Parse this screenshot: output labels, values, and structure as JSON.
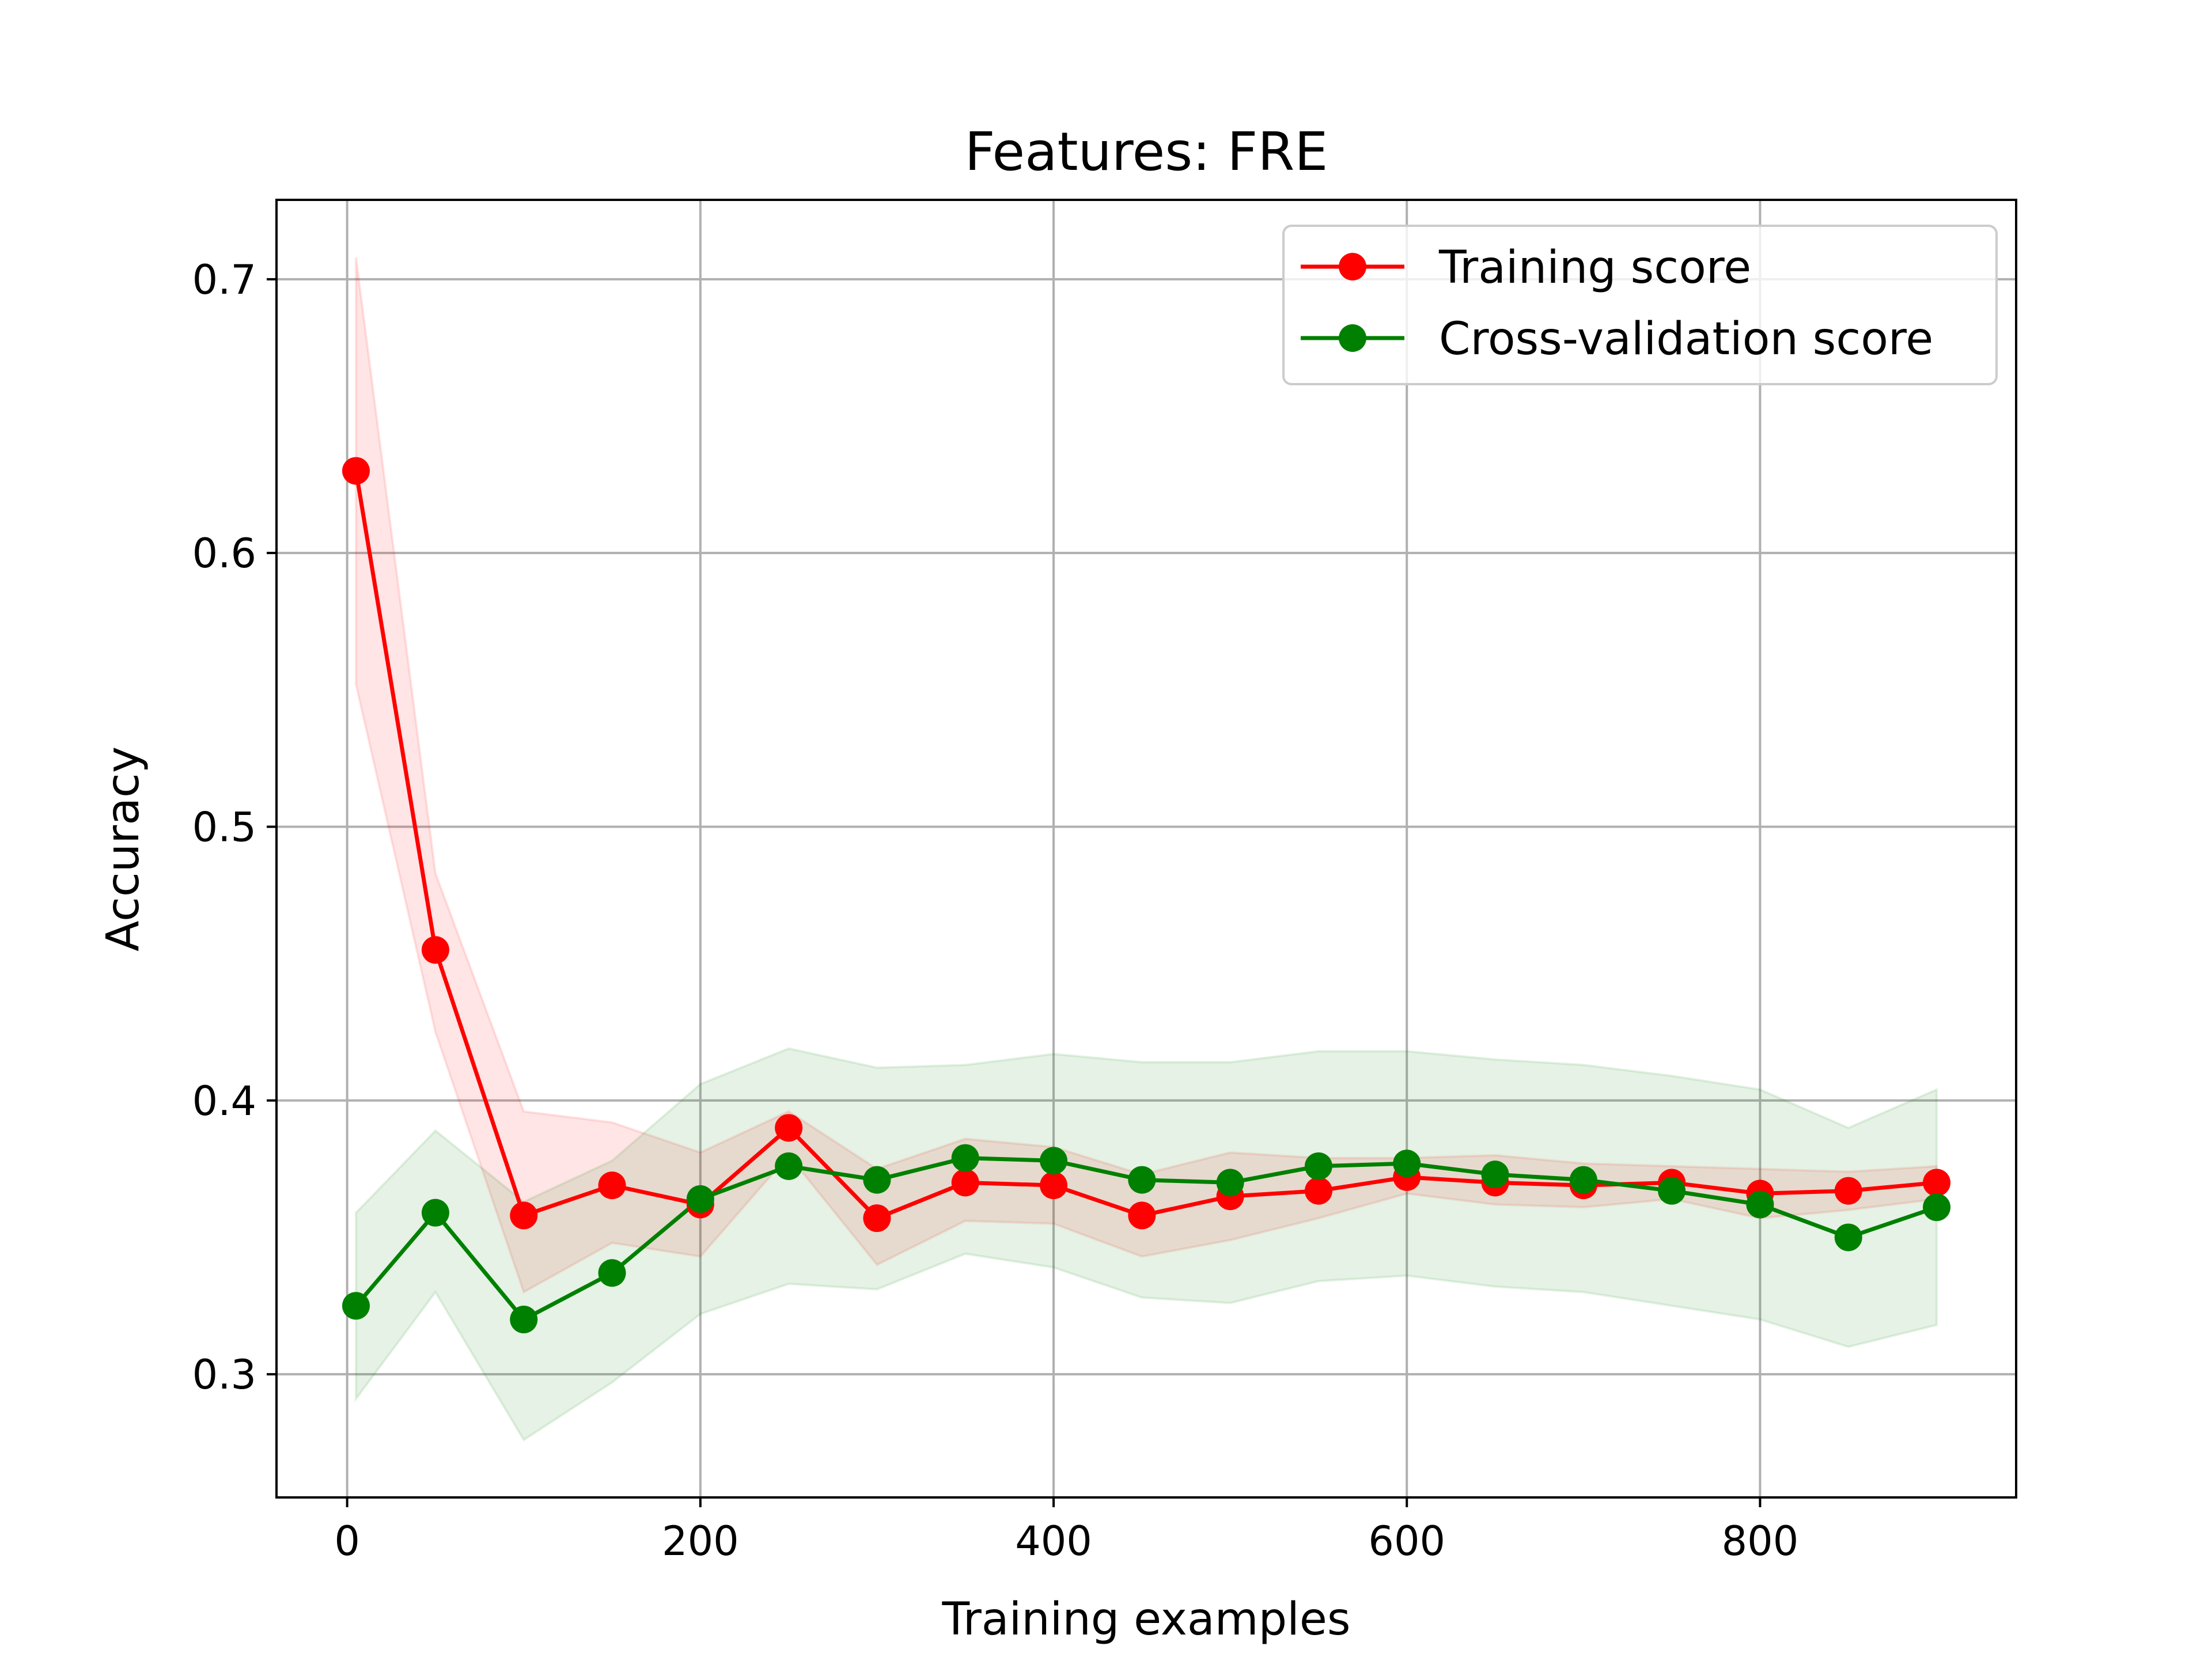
{
  "chart_data": {
    "type": "line",
    "title": "Features: FRE",
    "xlabel": "Training examples",
    "ylabel": "Accuracy",
    "xlim": [
      -40,
      945
    ],
    "ylim": [
      0.255,
      0.729
    ],
    "xticks": [
      0,
      200,
      400,
      600,
      800
    ],
    "xtick_labels": [
      "0",
      "200",
      "400",
      "600",
      "800"
    ],
    "yticks": [
      0.3,
      0.4,
      0.5,
      0.6,
      0.7
    ],
    "ytick_labels": [
      "0.3",
      "0.4",
      "0.5",
      "0.6",
      "0.7"
    ],
    "grid": true,
    "legend_position": "top-right",
    "x": [
      5,
      50,
      100,
      150,
      200,
      250,
      300,
      350,
      400,
      450,
      500,
      550,
      600,
      650,
      700,
      750,
      800,
      850,
      900
    ],
    "series": [
      {
        "name": "Training score",
        "color": "#ff0000",
        "band_color": "#ff0000",
        "values": [
          0.63,
          0.455,
          0.358,
          0.369,
          0.362,
          0.39,
          0.357,
          0.37,
          0.369,
          0.358,
          0.365,
          0.367,
          0.372,
          0.37,
          0.369,
          0.37,
          0.366,
          0.367,
          0.37
        ],
        "band_lower": [
          0.552,
          0.425,
          0.33,
          0.348,
          0.343,
          0.38,
          0.34,
          0.356,
          0.355,
          0.343,
          0.349,
          0.357,
          0.366,
          0.362,
          0.361,
          0.364,
          0.357,
          0.36,
          0.364
        ],
        "band_upper": [
          0.708,
          0.483,
          0.396,
          0.392,
          0.381,
          0.396,
          0.375,
          0.386,
          0.383,
          0.373,
          0.381,
          0.379,
          0.379,
          0.38,
          0.377,
          0.376,
          0.375,
          0.374,
          0.376
        ]
      },
      {
        "name": "Cross-validation score",
        "color": "#008000",
        "band_color": "#008000",
        "values": [
          0.325,
          0.359,
          0.32,
          0.337,
          0.364,
          0.376,
          0.371,
          0.379,
          0.378,
          0.371,
          0.37,
          0.376,
          0.377,
          0.373,
          0.371,
          0.367,
          0.362,
          0.35,
          0.361
        ],
        "band_lower": [
          0.291,
          0.33,
          0.276,
          0.297,
          0.322,
          0.333,
          0.331,
          0.344,
          0.339,
          0.328,
          0.326,
          0.334,
          0.336,
          0.332,
          0.33,
          0.325,
          0.32,
          0.31,
          0.318
        ],
        "band_upper": [
          0.359,
          0.389,
          0.363,
          0.378,
          0.406,
          0.419,
          0.412,
          0.413,
          0.417,
          0.414,
          0.414,
          0.418,
          0.418,
          0.415,
          0.413,
          0.409,
          0.404,
          0.39,
          0.404
        ]
      }
    ]
  }
}
